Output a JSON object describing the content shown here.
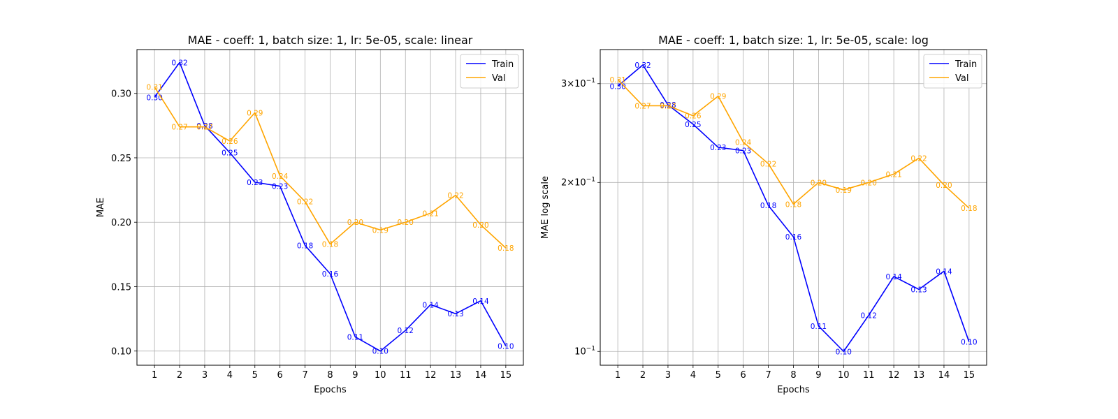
{
  "chart_data": [
    {
      "type": "line",
      "title": "MAE - coeff: 1, batch size: 1, lr: 5e-05, scale: linear",
      "xlabel": "Epochs",
      "ylabel": "MAE",
      "yscale": "linear",
      "x": [
        1,
        2,
        3,
        4,
        5,
        6,
        7,
        8,
        9,
        10,
        11,
        12,
        13,
        14,
        15
      ],
      "xlim": [
        0.3,
        15.7
      ],
      "ylim": [
        0.089,
        0.334
      ],
      "yticks": [
        {
          "value": 0.1,
          "label": "0.10"
        },
        {
          "value": 0.15,
          "label": "0.15"
        },
        {
          "value": 0.2,
          "label": "0.20"
        },
        {
          "value": 0.25,
          "label": "0.25"
        },
        {
          "value": 0.3,
          "label": "0.30"
        }
      ],
      "grid": true,
      "legend_position": "top-right",
      "series": [
        {
          "name": "Train",
          "color": "#0000ff",
          "values": [
            0.297,
            0.324,
            0.275,
            0.254,
            0.231,
            0.228,
            0.182,
            0.16,
            0.111,
            0.1,
            0.116,
            0.136,
            0.129,
            0.139,
            0.104
          ],
          "labels": [
            "0.30",
            "0.32",
            "0.28",
            "0.25",
            "0.23",
            "0.23",
            "0.18",
            "0.16",
            "0.11",
            "0.10",
            "0.12",
            "0.14",
            "0.13",
            "0.14",
            "0.10"
          ]
        },
        {
          "name": "Val",
          "color": "#ffa500",
          "values": [
            0.305,
            0.274,
            0.274,
            0.263,
            0.285,
            0.236,
            0.216,
            0.183,
            0.2,
            0.194,
            0.2,
            0.207,
            0.221,
            0.198,
            0.18
          ],
          "labels": [
            "0.31",
            "0.27",
            "0.27",
            "0.26",
            "0.29",
            "0.24",
            "0.22",
            "0.18",
            "0.20",
            "0.19",
            "0.20",
            "0.21",
            "0.22",
            "0.20",
            "0.18"
          ]
        }
      ]
    },
    {
      "type": "line",
      "title": "MAE - coeff: 1, batch size: 1, lr: 5e-05, scale: log",
      "xlabel": "Epochs",
      "ylabel": "MAE log scale",
      "yscale": "log",
      "x": [
        1,
        2,
        3,
        4,
        5,
        6,
        7,
        8,
        9,
        10,
        11,
        12,
        13,
        14,
        15
      ],
      "xlim": [
        0.3,
        15.7
      ],
      "ylim": [
        0.0945,
        0.345
      ],
      "yticks": [
        {
          "value": 0.1,
          "base": "10",
          "exp": "−1"
        },
        {
          "value": 0.2,
          "base": "2×10",
          "exp": "−1"
        },
        {
          "value": 0.3,
          "base": "3×10",
          "exp": "−1"
        }
      ],
      "grid": true,
      "legend_position": "top-right",
      "series": [
        {
          "name": "Train",
          "color": "#0000ff",
          "values": [
            0.297,
            0.324,
            0.275,
            0.254,
            0.231,
            0.228,
            0.182,
            0.16,
            0.111,
            0.1,
            0.116,
            0.136,
            0.129,
            0.139,
            0.104
          ],
          "labels": [
            "0.30",
            "0.32",
            "0.28",
            "0.25",
            "0.23",
            "0.23",
            "0.18",
            "0.16",
            "0.11",
            "0.10",
            "0.12",
            "0.14",
            "0.13",
            "0.14",
            "0.10"
          ]
        },
        {
          "name": "Val",
          "color": "#ffa500",
          "values": [
            0.305,
            0.274,
            0.274,
            0.263,
            0.285,
            0.236,
            0.216,
            0.183,
            0.2,
            0.194,
            0.2,
            0.207,
            0.221,
            0.198,
            0.18
          ],
          "labels": [
            "0.31",
            "0.27",
            "0.27",
            "0.26",
            "0.29",
            "0.24",
            "0.22",
            "0.18",
            "0.20",
            "0.19",
            "0.20",
            "0.21",
            "0.22",
            "0.20",
            "0.18"
          ]
        }
      ]
    }
  ]
}
